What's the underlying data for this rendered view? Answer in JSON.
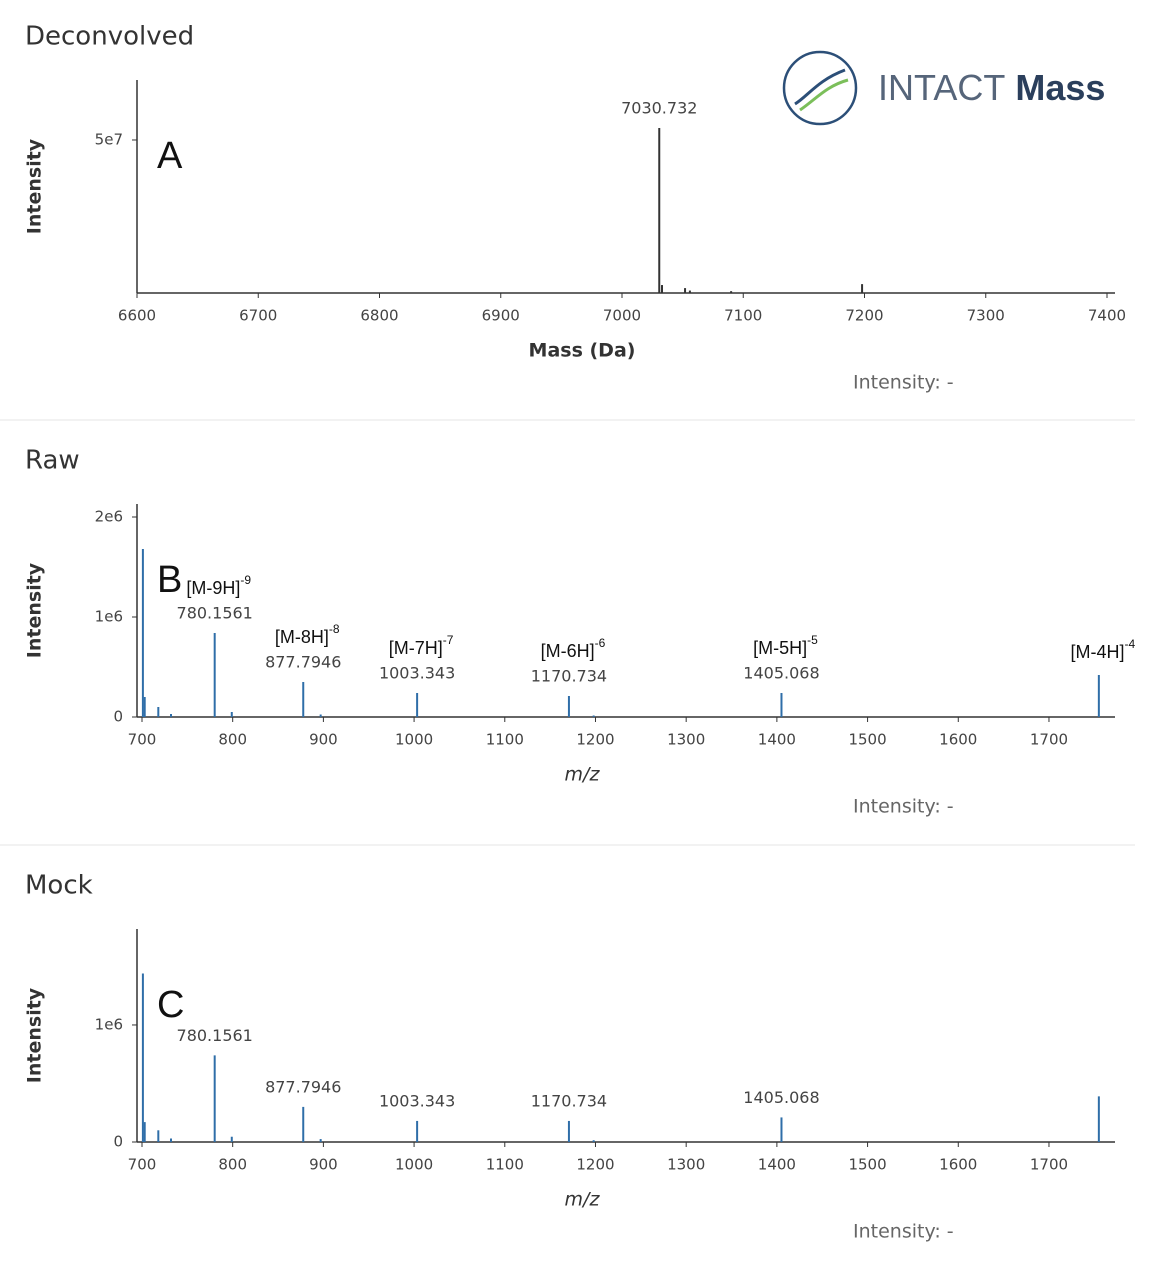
{
  "logo": {
    "name": "INTACT",
    "emphasis": "Mass"
  },
  "chart_data": [
    {
      "type": "stem",
      "title": "Deconvolved",
      "panel": "A",
      "x_label": "Mass (Da)",
      "y_label": "Intensity",
      "status": "Intensity: -",
      "color": "#333333",
      "x": [
        7030.732,
        7033,
        7052,
        7056,
        7090,
        7198
      ],
      "values": [
        53900000,
        2600000,
        1600000,
        800000,
        600000,
        2900000
      ],
      "peak_labels": [
        {
          "mz": 7030.732
        }
      ],
      "xlim": [
        6600,
        7406.6
      ],
      "ylim": [
        0,
        69600000
      ],
      "xticks": [
        6600,
        6700,
        6800,
        6900,
        7000,
        7100,
        7200,
        7300,
        7400
      ],
      "yticks": [
        {
          "value": 50000000,
          "label": "5e7"
        }
      ]
    },
    {
      "type": "stem",
      "title": "Raw",
      "panel": "B",
      "x_label": "m/z",
      "y_label": "Intensity",
      "status": "Intensity: -",
      "color": "#2f6ea8",
      "x": [
        701,
        703,
        718,
        732,
        780.1561,
        799,
        877.7946,
        897,
        1003.343,
        1170.734,
        1198,
        1405.068,
        1755
      ],
      "values": [
        1680000,
        200000,
        100000,
        30000,
        840000,
        50000,
        350000,
        25000,
        240000,
        210000,
        15000,
        240000,
        420000
      ],
      "peak_labels": [
        {
          "mz": 780.1561,
          "ion": "[M-9H]",
          "charge": "-9"
        },
        {
          "mz": 877.7946,
          "ion": "[M-8H]",
          "charge": "-8"
        },
        {
          "mz": 1003.343,
          "ion": "[M-7H]",
          "charge": "-7"
        },
        {
          "mz": 1170.734,
          "ion": "[M-6H]",
          "charge": "-6"
        },
        {
          "mz": 1405.068,
          "ion": "[M-5H]",
          "charge": "-5"
        },
        {
          "x": 1755,
          "ion": "[M-4H]",
          "charge": "-4"
        }
      ],
      "xlim": [
        694.5,
        1772.8
      ],
      "ylim": [
        0,
        2130000
      ],
      "xticks": [
        700,
        800,
        900,
        1000,
        1100,
        1200,
        1300,
        1400,
        1500,
        1600,
        1700
      ],
      "yticks": [
        0,
        {
          "value": 1000000,
          "label": "1e6"
        },
        {
          "value": 2000000,
          "label": "2e6"
        }
      ]
    },
    {
      "type": "stem",
      "title": "Mock",
      "panel": "C",
      "x_label": "m/z",
      "y_label": "Intensity",
      "status": "Intensity: -",
      "color": "#2f6ea8",
      "x": [
        701,
        703,
        718,
        732,
        780.1561,
        799,
        877.7946,
        897,
        1003.343,
        1170.734,
        1198,
        1405.068,
        1755
      ],
      "values": [
        1440000,
        170000,
        100000,
        30000,
        740000,
        45000,
        300000,
        25000,
        180000,
        180000,
        15000,
        210000,
        390000
      ],
      "peak_labels": [
        {
          "mz": 780.1561
        },
        {
          "mz": 877.7946
        },
        {
          "mz": 1003.343
        },
        {
          "mz": 1170.734
        },
        {
          "mz": 1405.068
        }
      ],
      "xlim": [
        694.5,
        1772.8
      ],
      "ylim": [
        0,
        1820000
      ],
      "xticks": [
        700,
        800,
        900,
        1000,
        1100,
        1200,
        1300,
        1400,
        1500,
        1600,
        1700
      ],
      "yticks": [
        0,
        {
          "value": 1000000,
          "label": "1e6"
        }
      ]
    }
  ]
}
